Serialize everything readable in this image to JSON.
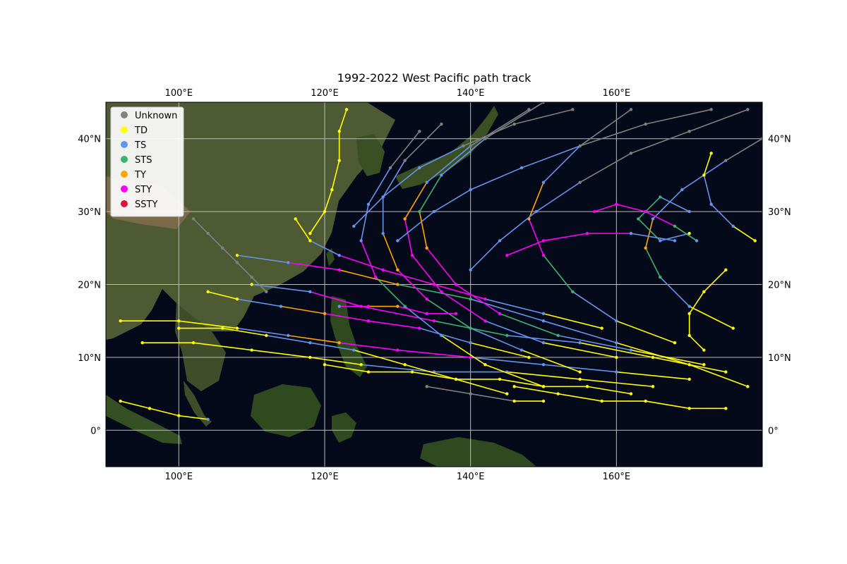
{
  "chart_data": {
    "type": "scatter",
    "title": "1992-2022 West Pacific path track",
    "xlabel": "",
    "ylabel": "",
    "xlim": [
      90,
      180
    ],
    "ylim": [
      -5,
      45
    ],
    "x_ticks": [
      100,
      120,
      140,
      160
    ],
    "x_tick_labels": [
      "100°E",
      "120°E",
      "140°E",
      "160°E"
    ],
    "y_ticks": [
      0,
      10,
      20,
      30,
      40
    ],
    "y_tick_labels": [
      "0°",
      "10°N",
      "20°N",
      "30°N",
      "40°N"
    ],
    "grid": true,
    "basemap": "satellite imagery with black coastlines",
    "legend_position": "top-left",
    "series": [
      {
        "name": "Unknown",
        "color": "#808080"
      },
      {
        "name": "TD",
        "color": "#ffff00"
      },
      {
        "name": "TS",
        "color": "#6495ed"
      },
      {
        "name": "STS",
        "color": "#3cb371"
      },
      {
        "name": "TY",
        "color": "#ffa500"
      },
      {
        "name": "STY",
        "color": "#ff00ff"
      },
      {
        "name": "SSTY",
        "color": "#dc143c"
      }
    ],
    "tracks": [
      {
        "points": [
          [
            178,
            6
          ],
          [
            170,
            9
          ],
          [
            160,
            12
          ],
          [
            150,
            15
          ],
          [
            140,
            18
          ],
          [
            130,
            20
          ],
          [
            122,
            22
          ],
          [
            115,
            23
          ],
          [
            108,
            24
          ]
        ],
        "cats": [
          1,
          1,
          2,
          2,
          3,
          4,
          5,
          2,
          1
        ]
      },
      {
        "points": [
          [
            175,
            8
          ],
          [
            165,
            10
          ],
          [
            155,
            12
          ],
          [
            145,
            13
          ],
          [
            135,
            15
          ],
          [
            125,
            17
          ],
          [
            118,
            19
          ],
          [
            110,
            20
          ]
        ],
        "cats": [
          1,
          1,
          2,
          3,
          5,
          5,
          2,
          1
        ]
      },
      {
        "points": [
          [
            170,
            7
          ],
          [
            160,
            8
          ],
          [
            150,
            9
          ],
          [
            140,
            10
          ],
          [
            130,
            11
          ],
          [
            122,
            12
          ],
          [
            115,
            13
          ],
          [
            108,
            14
          ],
          [
            100,
            15
          ],
          [
            92,
            15
          ]
        ],
        "cats": [
          1,
          2,
          2,
          5,
          5,
          4,
          2,
          1,
          1,
          1
        ]
      },
      {
        "points": [
          [
            165,
            6
          ],
          [
            155,
            7
          ],
          [
            145,
            8
          ],
          [
            135,
            8
          ],
          [
            125,
            9
          ],
          [
            118,
            10
          ],
          [
            110,
            11
          ],
          [
            102,
            12
          ],
          [
            95,
            12
          ]
        ],
        "cats": [
          1,
          1,
          2,
          2,
          1,
          1,
          1,
          1,
          1
        ]
      },
      {
        "points": [
          [
            172,
            9
          ],
          [
            162,
            11
          ],
          [
            152,
            13
          ],
          [
            144,
            16
          ],
          [
            138,
            20
          ],
          [
            134,
            25
          ],
          [
            133,
            30
          ],
          [
            136,
            35
          ],
          [
            142,
            40
          ],
          [
            150,
            45
          ]
        ],
        "cats": [
          1,
          2,
          3,
          5,
          5,
          4,
          3,
          2,
          0,
          0
        ]
      },
      {
        "points": [
          [
            160,
            10
          ],
          [
            150,
            12
          ],
          [
            142,
            15
          ],
          [
            136,
            19
          ],
          [
            132,
            24
          ],
          [
            131,
            29
          ],
          [
            134,
            34
          ],
          [
            140,
            39
          ],
          [
            148,
            44
          ]
        ],
        "cats": [
          1,
          2,
          5,
          5,
          5,
          4,
          2,
          0,
          0
        ]
      },
      {
        "points": [
          [
            155,
            8
          ],
          [
            147,
            11
          ],
          [
            140,
            14
          ],
          [
            134,
            18
          ],
          [
            130,
            22
          ],
          [
            128,
            27
          ],
          [
            128,
            32
          ],
          [
            131,
            37
          ],
          [
            136,
            42
          ]
        ],
        "cats": [
          1,
          2,
          3,
          5,
          4,
          2,
          2,
          0,
          0
        ]
      },
      {
        "points": [
          [
            150,
            6
          ],
          [
            142,
            9
          ],
          [
            136,
            13
          ],
          [
            131,
            17
          ],
          [
            127,
            21
          ],
          [
            125,
            26
          ],
          [
            126,
            31
          ],
          [
            129,
            36
          ],
          [
            133,
            41
          ]
        ],
        "cats": [
          1,
          1,
          2,
          3,
          5,
          2,
          2,
          0,
          0
        ]
      },
      {
        "points": [
          [
            168,
            12
          ],
          [
            160,
            15
          ],
          [
            154,
            19
          ],
          [
            150,
            24
          ],
          [
            148,
            29
          ],
          [
            150,
            34
          ],
          [
            155,
            39
          ],
          [
            162,
            44
          ]
        ],
        "cats": [
          1,
          2,
          3,
          5,
          4,
          2,
          0,
          0
        ]
      },
      {
        "points": [
          [
            176,
            14
          ],
          [
            170,
            17
          ],
          [
            166,
            21
          ],
          [
            164,
            25
          ],
          [
            165,
            29
          ],
          [
            169,
            33
          ],
          [
            175,
            37
          ],
          [
            180,
            40
          ]
        ],
        "cats": [
          1,
          2,
          3,
          4,
          2,
          2,
          0,
          0
        ]
      },
      {
        "points": [
          [
            158,
            14
          ],
          [
            150,
            16
          ],
          [
            142,
            18
          ],
          [
            135,
            20
          ],
          [
            128,
            22
          ],
          [
            122,
            24
          ],
          [
            118,
            26
          ],
          [
            116,
            29
          ]
        ],
        "cats": [
          1,
          2,
          5,
          5,
          5,
          2,
          1,
          1
        ]
      },
      {
        "points": [
          [
            148,
            10
          ],
          [
            140,
            12
          ],
          [
            133,
            14
          ],
          [
            126,
            15
          ],
          [
            120,
            16
          ],
          [
            114,
            17
          ],
          [
            108,
            18
          ],
          [
            104,
            19
          ]
        ],
        "cats": [
          1,
          2,
          5,
          5,
          4,
          2,
          1,
          1
        ]
      },
      {
        "points": [
          [
            145,
            5
          ],
          [
            138,
            7
          ],
          [
            131,
            9
          ],
          [
            124,
            11
          ],
          [
            118,
            12
          ],
          [
            112,
            13
          ],
          [
            106,
            14
          ],
          [
            100,
            14
          ]
        ],
        "cats": [
          1,
          1,
          1,
          2,
          2,
          1,
          1,
          1
        ]
      },
      {
        "points": [
          [
            162,
            5
          ],
          [
            156,
            6
          ],
          [
            150,
            6
          ],
          [
            144,
            7
          ],
          [
            138,
            7
          ],
          [
            132,
            8
          ],
          [
            126,
            8
          ],
          [
            120,
            9
          ]
        ],
        "cats": [
          1,
          1,
          1,
          1,
          1,
          1,
          1,
          1
        ]
      },
      {
        "points": [
          [
            140,
            22
          ],
          [
            144,
            26
          ],
          [
            149,
            30
          ],
          [
            155,
            34
          ],
          [
            162,
            38
          ],
          [
            170,
            41
          ],
          [
            178,
            44
          ]
        ],
        "cats": [
          2,
          2,
          2,
          0,
          0,
          0,
          0
        ]
      },
      {
        "points": [
          [
            130,
            26
          ],
          [
            135,
            30
          ],
          [
            140,
            33
          ],
          [
            147,
            36
          ],
          [
            155,
            39
          ],
          [
            164,
            42
          ],
          [
            173,
            44
          ]
        ],
        "cats": [
          2,
          2,
          2,
          2,
          0,
          0,
          0
        ]
      },
      {
        "points": [
          [
            124,
            28
          ],
          [
            128,
            32
          ],
          [
            133,
            36
          ],
          [
            139,
            39
          ],
          [
            146,
            42
          ],
          [
            154,
            44
          ]
        ],
        "cats": [
          2,
          2,
          2,
          0,
          0,
          0
        ]
      },
      {
        "points": [
          [
            170,
            30
          ],
          [
            166,
            32
          ],
          [
            163,
            29
          ],
          [
            166,
            26
          ],
          [
            170,
            27
          ]
        ],
        "cats": [
          2,
          3,
          3,
          2,
          1
        ]
      },
      {
        "points": [
          [
            175,
            22
          ],
          [
            172,
            19
          ],
          [
            170,
            16
          ],
          [
            170,
            13
          ],
          [
            172,
            11
          ]
        ],
        "cats": [
          1,
          1,
          1,
          1,
          1
        ]
      },
      {
        "points": [
          [
            157,
            30
          ],
          [
            160,
            31
          ],
          [
            164,
            30
          ],
          [
            168,
            28
          ],
          [
            171,
            26
          ]
        ],
        "cats": [
          5,
          5,
          5,
          3,
          2
        ]
      },
      {
        "points": [
          [
            112,
            19
          ],
          [
            110,
            21
          ],
          [
            108,
            23
          ],
          [
            106,
            25
          ],
          [
            104,
            27
          ],
          [
            102,
            29
          ]
        ],
        "cats": [
          0,
          0,
          0,
          0,
          0,
          0
        ]
      },
      {
        "points": [
          [
            118,
            27
          ],
          [
            120,
            30
          ],
          [
            121,
            33
          ],
          [
            122,
            37
          ],
          [
            122,
            41
          ],
          [
            123,
            44
          ]
        ],
        "cats": [
          1,
          1,
          1,
          1,
          1,
          1
        ]
      },
      {
        "points": [
          [
            92,
            4
          ],
          [
            96,
            3
          ],
          [
            100,
            2
          ],
          [
            104,
            1.5
          ]
        ],
        "cats": [
          1,
          1,
          1,
          2
        ]
      },
      {
        "points": [
          [
            146,
            6
          ],
          [
            152,
            5
          ],
          [
            158,
            4
          ],
          [
            164,
            4
          ],
          [
            170,
            3
          ],
          [
            175,
            3
          ]
        ],
        "cats": [
          1,
          1,
          1,
          1,
          1,
          1
        ]
      },
      {
        "points": [
          [
            134,
            6
          ],
          [
            140,
            5
          ],
          [
            146,
            4
          ],
          [
            150,
            4
          ]
        ],
        "cats": [
          0,
          0,
          1,
          1
        ]
      },
      {
        "points": [
          [
            145,
            24
          ],
          [
            150,
            26
          ],
          [
            156,
            27
          ],
          [
            162,
            27
          ],
          [
            168,
            26
          ]
        ],
        "cats": [
          5,
          5,
          5,
          2,
          2
        ]
      },
      {
        "points": [
          [
            138,
            16
          ],
          [
            134,
            16
          ],
          [
            130,
            17
          ],
          [
            126,
            17
          ],
          [
            122,
            17
          ]
        ],
        "cats": [
          5,
          5,
          4,
          5,
          2
        ]
      },
      {
        "points": [
          [
            179,
            26
          ],
          [
            176,
            28
          ],
          [
            173,
            31
          ],
          [
            172,
            35
          ],
          [
            173,
            38
          ]
        ],
        "cats": [
          1,
          2,
          2,
          1,
          1
        ]
      }
    ]
  }
}
